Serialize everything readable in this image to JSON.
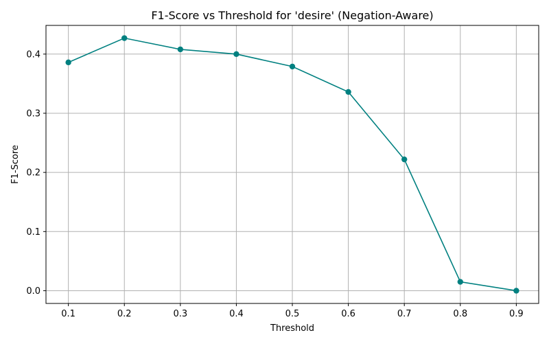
{
  "chart_data": {
    "type": "line",
    "title": "F1-Score vs Threshold for 'desire' (Negation-Aware)",
    "xlabel": "Threshold",
    "ylabel": "F1-Score",
    "x": [
      0.1,
      0.2,
      0.3,
      0.4,
      0.5,
      0.6,
      0.7,
      0.8,
      0.9
    ],
    "series": [
      {
        "name": "",
        "values": [
          0.386,
          0.427,
          0.408,
          0.4,
          0.379,
          0.336,
          0.222,
          0.015,
          0.0
        ],
        "color": "#008080",
        "marker": "circle"
      }
    ],
    "xticks": [
      "0.1",
      "0.2",
      "0.3",
      "0.4",
      "0.5",
      "0.6",
      "0.7",
      "0.8",
      "0.9"
    ],
    "yticks": [
      "0.0",
      "0.1",
      "0.2",
      "0.3",
      "0.4"
    ],
    "xlim": [
      0.06,
      0.94
    ],
    "ylim": [
      -0.0215,
      0.4485
    ],
    "grid": true,
    "legend": "none"
  }
}
